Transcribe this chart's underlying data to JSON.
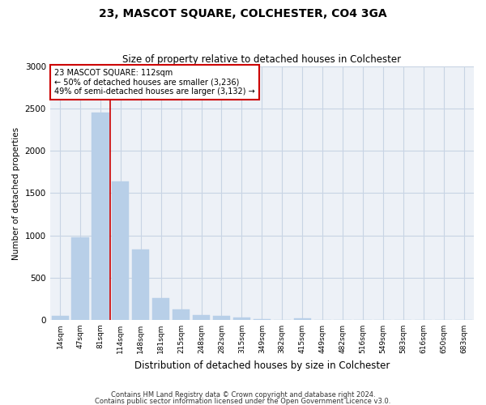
{
  "title": "23, MASCOT SQUARE, COLCHESTER, CO4 3GA",
  "subtitle": "Size of property relative to detached houses in Colchester",
  "xlabel": "Distribution of detached houses by size in Colchester",
  "ylabel": "Number of detached properties",
  "property_label": "23 MASCOT SQUARE: 112sqm",
  "annotation_line1": "← 50% of detached houses are smaller (3,236)",
  "annotation_line2": "49% of semi-detached houses are larger (3,132) →",
  "bar_color": "#b8cfe8",
  "vline_color": "#cc0000",
  "annotation_box_edgecolor": "#cc0000",
  "grid_color": "#c8d4e4",
  "background_color": "#edf1f7",
  "categories": [
    "14sqm",
    "47sqm",
    "81sqm",
    "114sqm",
    "148sqm",
    "181sqm",
    "215sqm",
    "248sqm",
    "282sqm",
    "315sqm",
    "349sqm",
    "382sqm",
    "415sqm",
    "449sqm",
    "482sqm",
    "516sqm",
    "549sqm",
    "583sqm",
    "616sqm",
    "650sqm",
    "683sqm"
  ],
  "values": [
    50,
    980,
    2450,
    1640,
    830,
    255,
    120,
    55,
    50,
    28,
    10,
    0,
    18,
    0,
    0,
    0,
    0,
    0,
    0,
    0,
    0
  ],
  "vline_position": 2.5,
  "ylim": [
    0,
    3000
  ],
  "yticks": [
    0,
    500,
    1000,
    1500,
    2000,
    2500,
    3000
  ],
  "footer_line1": "Contains HM Land Registry data © Crown copyright and database right 2024.",
  "footer_line2": "Contains public sector information licensed under the Open Government Licence v3.0.",
  "title_fontsize": 10,
  "subtitle_fontsize": 8.5,
  "ylabel_fontsize": 7.5,
  "xlabel_fontsize": 8.5,
  "tick_fontsize": 6.5,
  "ytick_fontsize": 7.5,
  "footer_fontsize": 6,
  "annot_fontsize": 7
}
